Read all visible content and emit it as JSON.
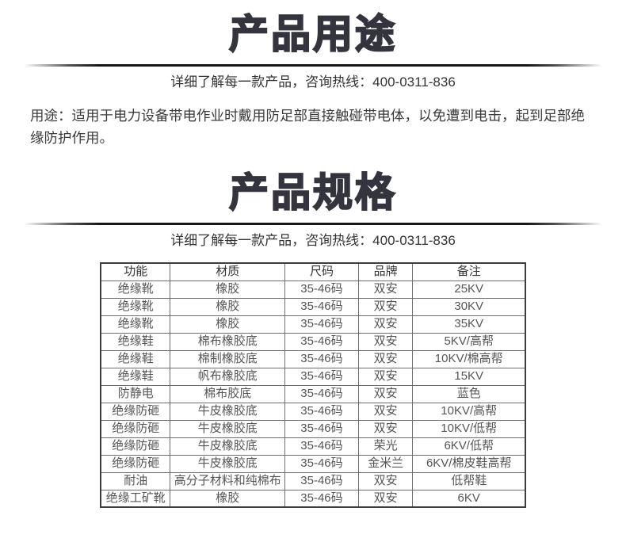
{
  "usage_section": {
    "title": "产品用途",
    "hotline": "详细了解每一款产品，咨询热线：400-0311-836",
    "description": "用途：适用于电力设备带电作业时戴用防足部直接触碰带电体，以免遭到电击，起到足部绝缘防护作用。"
  },
  "spec_section": {
    "title": "产品规格",
    "hotline": "详细了解每一款产品，咨询热线：400-0311-836"
  },
  "spec_table": {
    "headers": [
      "功能",
      "材质",
      "尺码",
      "品牌",
      "备注"
    ],
    "rows": [
      [
        "绝缘靴",
        "橡胶",
        "35-46码",
        "双安",
        "25KV"
      ],
      [
        "绝缘靴",
        "橡胶",
        "35-46码",
        "双安",
        "30KV"
      ],
      [
        "绝缘靴",
        "橡胶",
        "35-46码",
        "双安",
        "35KV"
      ],
      [
        "绝缘鞋",
        "棉布橡胶底",
        "35-46码",
        "双安",
        "5KV/高帮"
      ],
      [
        "绝缘鞋",
        "棉制橡胶底",
        "35-46码",
        "双安",
        "10KV/棉高帮"
      ],
      [
        "绝缘鞋",
        "帆布橡胶底",
        "35-46码",
        "双安",
        "15KV"
      ],
      [
        "防静电",
        "棉布胶底",
        "35-46码",
        "双安",
        "蓝色"
      ],
      [
        "绝缘防砸",
        "牛皮橡胶底",
        "35-46码",
        "双安",
        "10KV/高帮"
      ],
      [
        "绝缘防砸",
        "牛皮橡胶底",
        "35-46码",
        "双安",
        "10KV/低帮"
      ],
      [
        "绝缘防砸",
        "牛皮橡胶底",
        "35-46码",
        "荣光",
        "6KV/低帮"
      ],
      [
        "绝缘防砸",
        "牛皮橡胶底",
        "35-46码",
        "金米兰",
        "6KV/棉皮鞋高帮"
      ],
      [
        "耐油",
        "高分子材料和纯棉布",
        "35-46码",
        "双安",
        "低帮鞋"
      ],
      [
        "绝缘工矿靴",
        "橡胶",
        "35-46码",
        "双安",
        "6KV"
      ]
    ]
  },
  "colors": {
    "title": "#34343e",
    "body_text": "#3b3b3b",
    "table_text": "#565656",
    "table_inner_border": "#6e6e6e",
    "table_outer_border": "#3d3d3d",
    "divider": "#17171b",
    "background": "#ffffff"
  }
}
